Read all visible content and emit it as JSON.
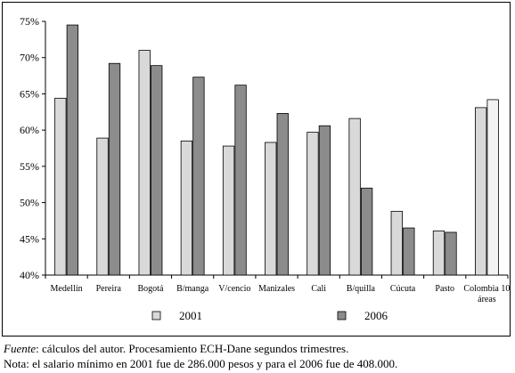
{
  "chart_data": {
    "type": "bar",
    "categories": [
      "Medellín",
      "Pereira",
      "Bogotá",
      "B/manga",
      "V/cencio",
      "Manizales",
      "Cali",
      "B/quilla",
      "Cúcuta",
      "Pasto",
      "Colombia 10 áreas"
    ],
    "series": [
      {
        "name": "2001",
        "color": "#d9d9d9",
        "values": [
          64.4,
          58.9,
          71.0,
          58.5,
          57.8,
          58.3,
          59.7,
          61.6,
          48.8,
          46.1,
          63.1
        ]
      },
      {
        "name": "2006",
        "color": "#8c8c8c",
        "values": [
          74.5,
          69.2,
          68.9,
          67.3,
          66.2,
          62.3,
          60.6,
          52.0,
          46.5,
          45.9,
          64.2
        ]
      }
    ],
    "y_ticks": [
      "40%",
      "45%",
      "50%",
      "55%",
      "60%",
      "65%",
      "70%",
      "75%"
    ],
    "ylim": [
      40,
      75
    ],
    "last_bar_highlight_color": "#f2f2f2",
    "legend_position": "bottom",
    "grid": false
  },
  "notes": {
    "source_label": "Fuente",
    "source_text": ": cálculos del autor. Procesamiento ECH-Dane segundos trimestres.",
    "note_text": "Nota: el salario mínimo en 2001 fue de 286.000 pesos y para el 2006 fue de 408.000."
  }
}
